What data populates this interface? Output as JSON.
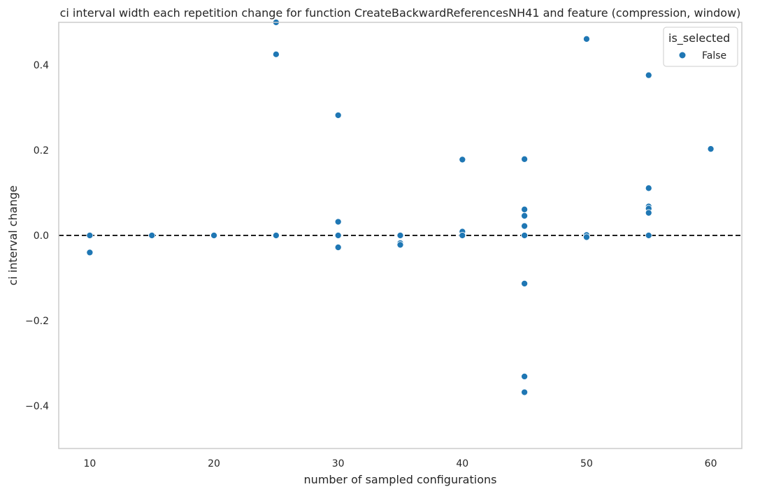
{
  "chart_data": {
    "type": "scatter",
    "title": "ci interval width each repetition change for function CreateBackwardReferencesNH41 and feature (compression, window)",
    "xlabel": "number of sampled configurations",
    "ylabel": "ci interval change",
    "xlim": [
      7.5,
      62.5
    ],
    "ylim": [
      -0.5,
      0.5
    ],
    "x_ticks": [
      10,
      20,
      30,
      40,
      50,
      60
    ],
    "y_ticks": [
      0.4,
      0.2,
      0.0,
      -0.2,
      -0.4
    ],
    "y_tick_labels": [
      "0.4",
      "0.2",
      "0.0",
      "−0.2",
      "−0.4"
    ],
    "grid": false,
    "reference_line": {
      "y": 0.0,
      "style": "dashed",
      "color": "#000000"
    },
    "legend": {
      "title": "is_selected",
      "position": "top-right"
    },
    "series": [
      {
        "name": "False",
        "color": "#1f77b4",
        "points": [
          [
            10,
            0.0
          ],
          [
            10,
            -0.04
          ],
          [
            15,
            0.0
          ],
          [
            20,
            0.0
          ],
          [
            25,
            0.0
          ],
          [
            25,
            0.425
          ],
          [
            25,
            0.5
          ],
          [
            30,
            0.282
          ],
          [
            30,
            0.032
          ],
          [
            30,
            0.0
          ],
          [
            30,
            -0.028
          ],
          [
            35,
            0.0
          ],
          [
            35,
            -0.018
          ],
          [
            35,
            -0.022
          ],
          [
            40,
            0.178
          ],
          [
            40,
            0.009
          ],
          [
            40,
            0.0
          ],
          [
            45,
            0.179
          ],
          [
            45,
            0.061
          ],
          [
            45,
            0.046
          ],
          [
            45,
            0.022
          ],
          [
            45,
            0.0
          ],
          [
            45,
            -0.113
          ],
          [
            45,
            -0.331
          ],
          [
            45,
            -0.368
          ],
          [
            50,
            0.461
          ],
          [
            50,
            0.001
          ],
          [
            50,
            -0.004
          ],
          [
            55,
            0.376
          ],
          [
            55,
            0.111
          ],
          [
            55,
            0.068
          ],
          [
            55,
            0.063
          ],
          [
            55,
            0.053
          ],
          [
            55,
            0.0
          ],
          [
            60,
            0.203
          ]
        ]
      }
    ]
  }
}
